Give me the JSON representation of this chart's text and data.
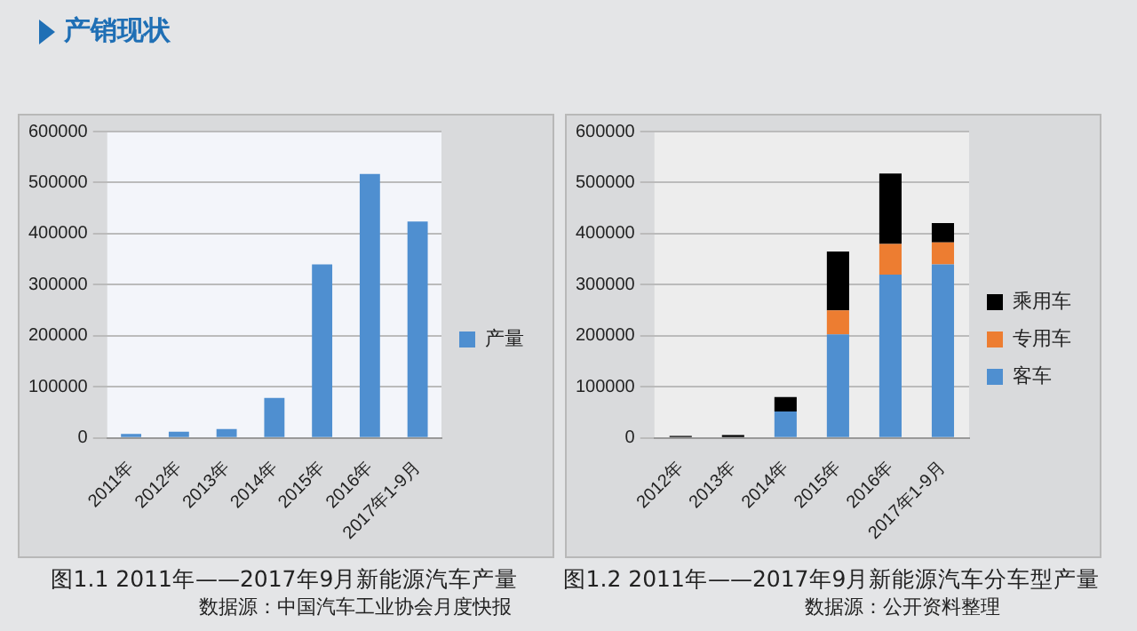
{
  "chart_data": [
    {
      "type": "bar",
      "title": "产销现状",
      "subtitle": "图1.1  2011年——2017年9月新能源汽车产量",
      "annotations": [
        "数据源：中国汽车工业协会月度快报"
      ],
      "categories": [
        "2011年",
        "2012年",
        "2013年",
        "2014年",
        "2015年",
        "2016年",
        "2017年1-9月"
      ],
      "series": [
        {
          "name": "产量",
          "color": "#4f8fd0",
          "values": [
            8000,
            12500,
            17500,
            78500,
            340000,
            517000,
            424000
          ]
        }
      ],
      "ylim": [
        0,
        600000
      ],
      "yticks": [
        0,
        100000,
        200000,
        300000,
        400000,
        500000,
        600000
      ],
      "grid": "y",
      "legend": "right"
    },
    {
      "type": "bar",
      "title": "图1.2  2011年——2017年9月新能源汽车分车型产量",
      "annotations": [
        "数据源：公开资料整理"
      ],
      "categories": [
        "2012年",
        "2013年",
        "2014年",
        "2015年",
        "2016年",
        "2017年1-9月"
      ],
      "stacked": true,
      "series": [
        {
          "name": "客车",
          "color": "#4f8fd0",
          "values": [
            0,
            0,
            52000,
            203000,
            320000,
            340000
          ]
        },
        {
          "name": "专用车",
          "color": "#ed7d31",
          "values": [
            0,
            0,
            0,
            47000,
            60000,
            43000
          ]
        },
        {
          "name": "乘用车",
          "color": "#000000",
          "values": [
            4000,
            6000,
            28000,
            115000,
            138000,
            38000
          ]
        }
      ],
      "ylim": [
        0,
        600000
      ],
      "yticks": [
        0,
        100000,
        200000,
        300000,
        400000,
        500000,
        600000
      ],
      "grid": "y",
      "legend": "right"
    }
  ]
}
